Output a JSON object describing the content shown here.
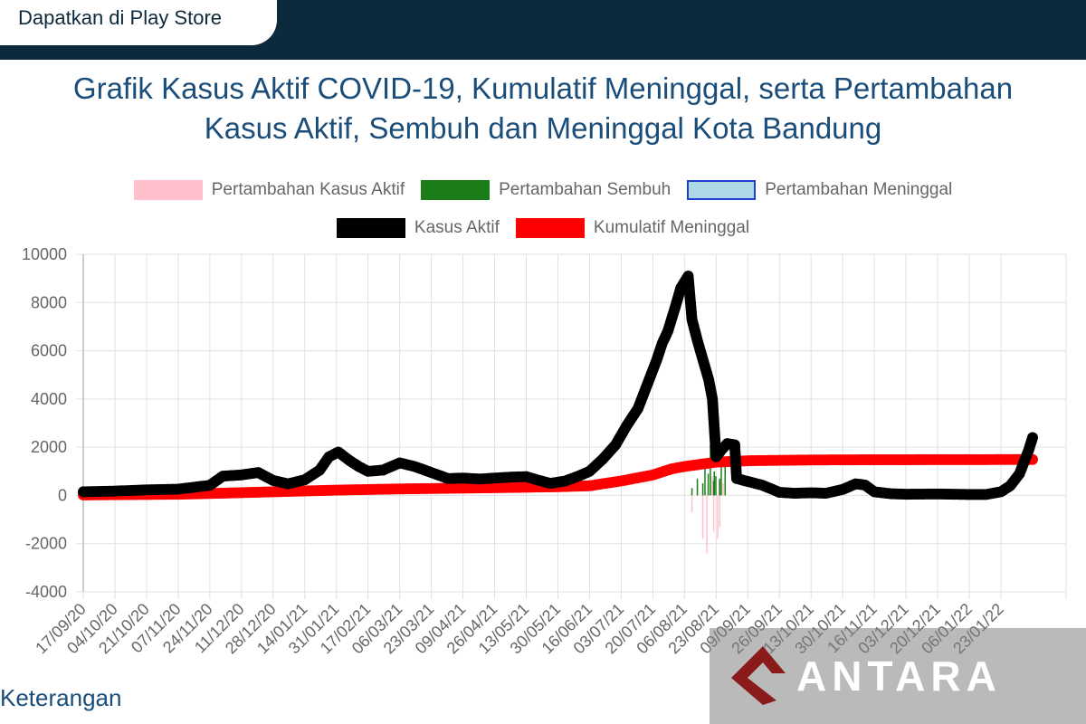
{
  "header": {
    "play_store_label": "Dapatkan di Play Store"
  },
  "page_title_line1": "Grafik Kasus Aktif COVID-19, Kumulatif Meninggal, serta Pertambahan",
  "page_title_line2": "Kasus Aktif, Sembuh dan Meninggal Kota Bandung",
  "footer": {
    "keterangan": "Keterangan"
  },
  "watermark": {
    "text": "ANTARA"
  },
  "chart_data": {
    "type": "line",
    "title": "Grafik Kasus Aktif COVID-19, Kumulatif Meninggal, serta Pertambahan Kasus Aktif, Sembuh dan Meninggal Kota Bandung",
    "xlabel": "",
    "ylabel": "",
    "ylim": [
      -4000,
      10000
    ],
    "yticks": [
      10000,
      8000,
      6000,
      4000,
      2000,
      0,
      -2000,
      -4000
    ],
    "xticks": [
      "17/09/20",
      "04/10/20",
      "21/10/20",
      "07/11/20",
      "24/11/20",
      "11/12/20",
      "28/12/20",
      "14/01/21",
      "31/01/21",
      "17/02/21",
      "06/03/21",
      "23/03/21",
      "09/04/21",
      "26/04/21",
      "13/05/21",
      "30/05/21",
      "16/06/21",
      "03/07/21",
      "20/07/21",
      "06/08/21",
      "23/08/21",
      "09/09/21",
      "26/09/21",
      "13/10/21",
      "30/10/21",
      "16/11/21",
      "03/12/21",
      "20/12/21",
      "06/01/22",
      "23/01/22"
    ],
    "grid": true,
    "legend_position": "top",
    "series": [
      {
        "name": "Pertambahan Kasus Aktif",
        "type": "bar",
        "color": "#ffc0cb",
        "spikes": [
          {
            "x": "10/08/21",
            "values": [
              -700,
              400,
              -1800,
              300,
              -1500,
              600
            ]
          },
          {
            "x": "18/08/21",
            "values": [
              -2400,
              800,
              -1800,
              500
            ]
          },
          {
            "x": "25/08/21",
            "values": [
              -1300,
              300
            ]
          }
        ]
      },
      {
        "name": "Pertambahan Sembuh",
        "type": "bar",
        "color": "#1a7d1a",
        "spikes": [
          {
            "x": "10/08/21",
            "values": [
              300,
              700,
              500,
              900,
              600
            ]
          },
          {
            "x": "17/08/21",
            "values": [
              1300,
              2100,
              800,
              1500
            ]
          },
          {
            "x": "22/08/21",
            "values": [
              1000,
              700,
              1400
            ]
          }
        ]
      },
      {
        "name": "Pertambahan Meninggal",
        "type": "bar",
        "color": "#add8e6",
        "border": "#1f3fd1",
        "spikes": []
      },
      {
        "name": "Kasus Aktif",
        "type": "line",
        "color": "#000000",
        "points": [
          [
            "17/09/20",
            150
          ],
          [
            "04/10/20",
            180
          ],
          [
            "21/10/20",
            230
          ],
          [
            "07/11/20",
            260
          ],
          [
            "24/11/20",
            420
          ],
          [
            "01/12/20",
            800
          ],
          [
            "11/12/20",
            850
          ],
          [
            "20/12/20",
            950
          ],
          [
            "28/12/20",
            620
          ],
          [
            "05/01/21",
            480
          ],
          [
            "14/01/21",
            650
          ],
          [
            "22/01/21",
            1050
          ],
          [
            "27/01/21",
            1600
          ],
          [
            "01/02/21",
            1800
          ],
          [
            "07/02/21",
            1450
          ],
          [
            "12/02/21",
            1200
          ],
          [
            "17/02/21",
            1000
          ],
          [
            "25/02/21",
            1050
          ],
          [
            "06/03/21",
            1350
          ],
          [
            "14/03/21",
            1200
          ],
          [
            "23/03/21",
            950
          ],
          [
            "01/04/21",
            700
          ],
          [
            "09/04/21",
            720
          ],
          [
            "18/04/21",
            680
          ],
          [
            "26/04/21",
            720
          ],
          [
            "05/05/21",
            760
          ],
          [
            "13/05/21",
            780
          ],
          [
            "20/05/21",
            620
          ],
          [
            "26/05/21",
            500
          ],
          [
            "03/06/21",
            600
          ],
          [
            "10/06/21",
            800
          ],
          [
            "16/06/21",
            1000
          ],
          [
            "23/06/21",
            1500
          ],
          [
            "30/06/21",
            2100
          ],
          [
            "06/07/21",
            2900
          ],
          [
            "12/07/21",
            3600
          ],
          [
            "17/07/21",
            4600
          ],
          [
            "22/07/21",
            5600
          ],
          [
            "25/07/21",
            6300
          ],
          [
            "28/07/21",
            6800
          ],
          [
            "01/08/21",
            7800
          ],
          [
            "04/08/21",
            8600
          ],
          [
            "08/08/21",
            9100
          ],
          [
            "10/08/21",
            7300
          ],
          [
            "13/08/21",
            6400
          ],
          [
            "16/08/21",
            5600
          ],
          [
            "19/08/21",
            4800
          ],
          [
            "21/08/21",
            4000
          ],
          [
            "23/08/21",
            1600
          ],
          [
            "26/08/21",
            1900
          ],
          [
            "29/08/21",
            2150
          ],
          [
            "02/09/21",
            2100
          ],
          [
            "03/09/21",
            700
          ],
          [
            "09/09/21",
            580
          ],
          [
            "17/09/21",
            420
          ],
          [
            "26/09/21",
            130
          ],
          [
            "04/10/21",
            90
          ],
          [
            "13/10/21",
            110
          ],
          [
            "21/10/21",
            90
          ],
          [
            "30/10/21",
            250
          ],
          [
            "06/11/21",
            480
          ],
          [
            "11/11/21",
            430
          ],
          [
            "16/11/21",
            150
          ],
          [
            "25/11/21",
            70
          ],
          [
            "03/12/21",
            50
          ],
          [
            "20/12/21",
            60
          ],
          [
            "28/12/21",
            50
          ],
          [
            "06/01/22",
            40
          ],
          [
            "15/01/22",
            40
          ],
          [
            "23/01/22",
            150
          ],
          [
            "28/01/22",
            400
          ],
          [
            "02/02/22",
            900
          ],
          [
            "05/02/22",
            1500
          ],
          [
            "07/02/22",
            1900
          ],
          [
            "09/02/22",
            2400
          ]
        ]
      },
      {
        "name": "Kumulatif Meninggal",
        "type": "line",
        "color": "#ff0000",
        "points": [
          [
            "17/09/20",
            20
          ],
          [
            "07/11/20",
            50
          ],
          [
            "24/11/20",
            80
          ],
          [
            "28/12/20",
            150
          ],
          [
            "31/01/21",
            220
          ],
          [
            "06/03/21",
            270
          ],
          [
            "26/04/21",
            320
          ],
          [
            "30/05/21",
            360
          ],
          [
            "16/06/21",
            400
          ],
          [
            "03/07/21",
            600
          ],
          [
            "20/07/21",
            850
          ],
          [
            "30/07/21",
            1100
          ],
          [
            "06/08/21",
            1200
          ],
          [
            "23/08/21",
            1380
          ],
          [
            "09/09/21",
            1440
          ],
          [
            "13/10/21",
            1470
          ],
          [
            "16/11/21",
            1480
          ],
          [
            "06/01/22",
            1485
          ],
          [
            "09/02/22",
            1490
          ]
        ]
      }
    ]
  }
}
